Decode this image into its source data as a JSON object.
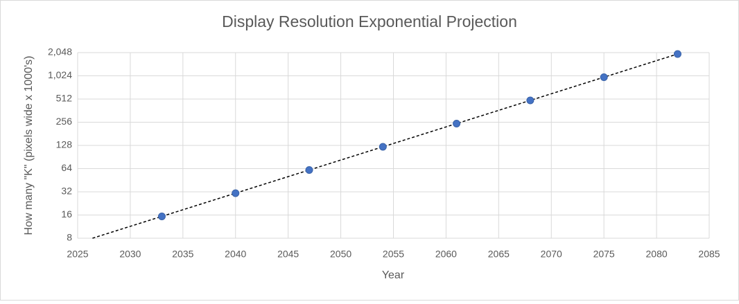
{
  "chart_data": {
    "type": "scatter",
    "title": "Display Resolution Exponential Projection",
    "x_label": "Year",
    "y_label": "How many \"K\" (pixels wide x 1000's)",
    "series": [
      {
        "color": "#4472c4",
        "x": [
          2033,
          2040,
          2047,
          2054,
          2061,
          2068,
          2075,
          2082
        ],
        "values": [
          15.36,
          30.72,
          61.44,
          122.88,
          245.76,
          491.52,
          983.04,
          1966.08
        ]
      }
    ],
    "xlim": [
      2025,
      2085
    ],
    "xticks": [
      2025,
      2030,
      2035,
      2040,
      2045,
      2050,
      2055,
      2060,
      2065,
      2070,
      2075,
      2080,
      2085
    ],
    "ylim": [
      8,
      2048
    ],
    "yticks": [
      8,
      16,
      32,
      64,
      128,
      256,
      512,
      {
        "value": 1024,
        "label": "1,024"
      },
      {
        "value": 2048,
        "label": "2,048"
      }
    ],
    "y_scale": "log",
    "grid": true,
    "trendline": "exponential"
  }
}
